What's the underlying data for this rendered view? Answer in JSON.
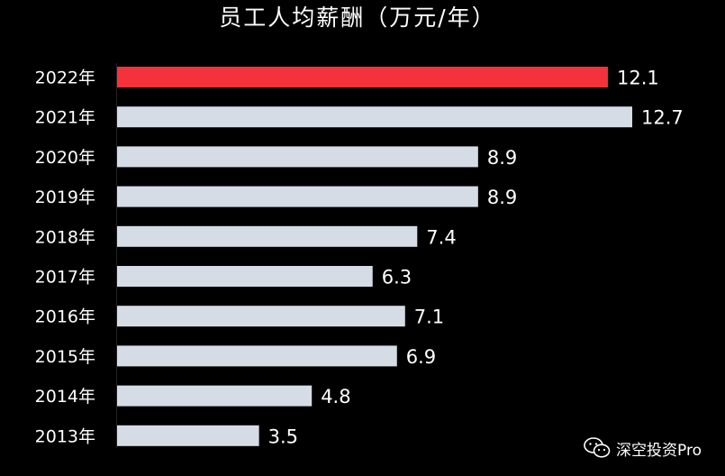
{
  "chart_data": {
    "type": "bar",
    "orientation": "horizontal",
    "title": "员工人均薪酬（万元/年）",
    "categories": [
      "2022年",
      "2021年",
      "2020年",
      "2019年",
      "2018年",
      "2017年",
      "2016年",
      "2015年",
      "2014年",
      "2013年"
    ],
    "values": [
      12.1,
      12.7,
      8.9,
      8.9,
      7.4,
      6.3,
      7.1,
      6.9,
      4.8,
      3.5
    ],
    "value_labels": [
      "12.1",
      "12.7",
      "8.9",
      "8.9",
      "7.4",
      "6.3",
      "7.1",
      "6.9",
      "4.8",
      "3.5"
    ],
    "xlim": [
      0,
      12.7
    ],
    "grid": false,
    "legend": "none",
    "highlight_index": 0,
    "colors": {
      "background": "#000000",
      "bar": "#d6dce6",
      "highlight": "#f5323c",
      "text": "#ffffff"
    }
  },
  "watermark": {
    "text": "深空投资Pro",
    "icon": "wechat-icon"
  }
}
